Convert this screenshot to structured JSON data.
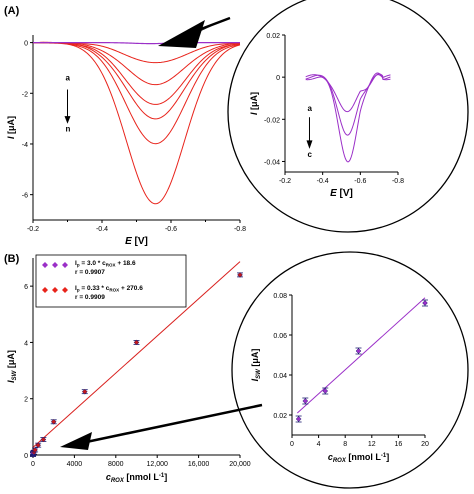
{
  "panels": {
    "a_label": "(A)",
    "b_label": "(B)"
  },
  "colors": {
    "red": "#e8241c",
    "purple": "#9b30c8",
    "fit_line": "#d9201e",
    "fit_purple": "#9b30c8",
    "marker_fill": "#c2181c",
    "marker_edge": "#1a1a6e"
  },
  "chart_data": [
    {
      "id": "A-main",
      "type": "line",
      "xlabel": "E [V]",
      "ylabel": "I [μA]",
      "xlim": [
        -0.2,
        -0.8
      ],
      "ylim": [
        -7,
        0.3
      ],
      "xticks": [
        -0.2,
        -0.4,
        -0.6,
        -0.8
      ],
      "yticks": [
        0,
        -2,
        -4,
        -6
      ],
      "annotation": {
        "top": "a",
        "bottom": "n"
      },
      "curves": {
        "peak_potential": -0.555,
        "peak_width": 0.085,
        "peak_currents": [
          -0.8,
          -1.65,
          -2.45,
          -3.0,
          -4.0,
          -6.35
        ]
      }
    },
    {
      "id": "A-inset",
      "type": "line",
      "xlabel": "E [V]",
      "ylabel": "I [μA]",
      "xlim": [
        -0.2,
        -0.8
      ],
      "ylim": [
        -0.045,
        0.02
      ],
      "xticks": [
        -0.2,
        -0.4,
        -0.6,
        -0.8
      ],
      "yticks": [
        0.02,
        0,
        -0.02,
        -0.04
      ],
      "annotation": {
        "top": "a",
        "bottom": "c"
      },
      "curves": {
        "peak_potential": -0.535,
        "peak_width": 0.05,
        "peak_currents": [
          -0.017,
          -0.027,
          -0.039
        ]
      }
    },
    {
      "id": "B-main",
      "type": "scatter",
      "xlabel": "c_ROX [nmol L⁻¹]",
      "ylabel": "I_SW [μA]",
      "xlim": [
        0,
        20000
      ],
      "ylim": [
        0,
        7
      ],
      "xticks": [
        0,
        4000,
        8000,
        12000,
        16000,
        20000
      ],
      "xtick_labels": [
        "0",
        "4000",
        "8000",
        "12,000",
        "16,000",
        "20,000"
      ],
      "yticks": [
        0,
        2,
        4,
        6
      ],
      "x": [
        1,
        2,
        5,
        10,
        20,
        100,
        200,
        500,
        1000,
        2000,
        5000,
        10000,
        20000
      ],
      "y": [
        0.018,
        0.027,
        0.032,
        0.052,
        0.076,
        0.1,
        0.18,
        0.35,
        0.55,
        1.18,
        2.25,
        4.0,
        6.4
      ],
      "legend": [
        {
          "eq_main": "I",
          "eq_sub": "p",
          "eq_text": " = 3.0 * c",
          "eq_csub": "ROX",
          "eq_tail": " + 18.6",
          "r": "r = 0.9907",
          "color": "purple"
        },
        {
          "eq_main": "I",
          "eq_sub": "p",
          "eq_text": " = 0.33 * c",
          "eq_csub": "ROX",
          "eq_tail": " + 270.6",
          "r": "r = 0.9909",
          "color": "red"
        }
      ],
      "fit": {
        "slope": 0.00033,
        "intercept": 0.2706
      }
    },
    {
      "id": "B-inset",
      "type": "scatter",
      "xlabel": "c_ROX [nmol L⁻¹]",
      "ylabel": "I_SW [μA]",
      "xlim": [
        0,
        20
      ],
      "ylim": [
        0.01,
        0.08
      ],
      "xticks": [
        0,
        4,
        8,
        12,
        16,
        20
      ],
      "yticks": [
        0.02,
        0.04,
        0.06,
        0.08
      ],
      "x": [
        1,
        2,
        5,
        10,
        20
      ],
      "y": [
        0.018,
        0.027,
        0.032,
        0.052,
        0.076
      ],
      "fit": {
        "slope": 0.003,
        "intercept": 0.0186
      }
    }
  ]
}
